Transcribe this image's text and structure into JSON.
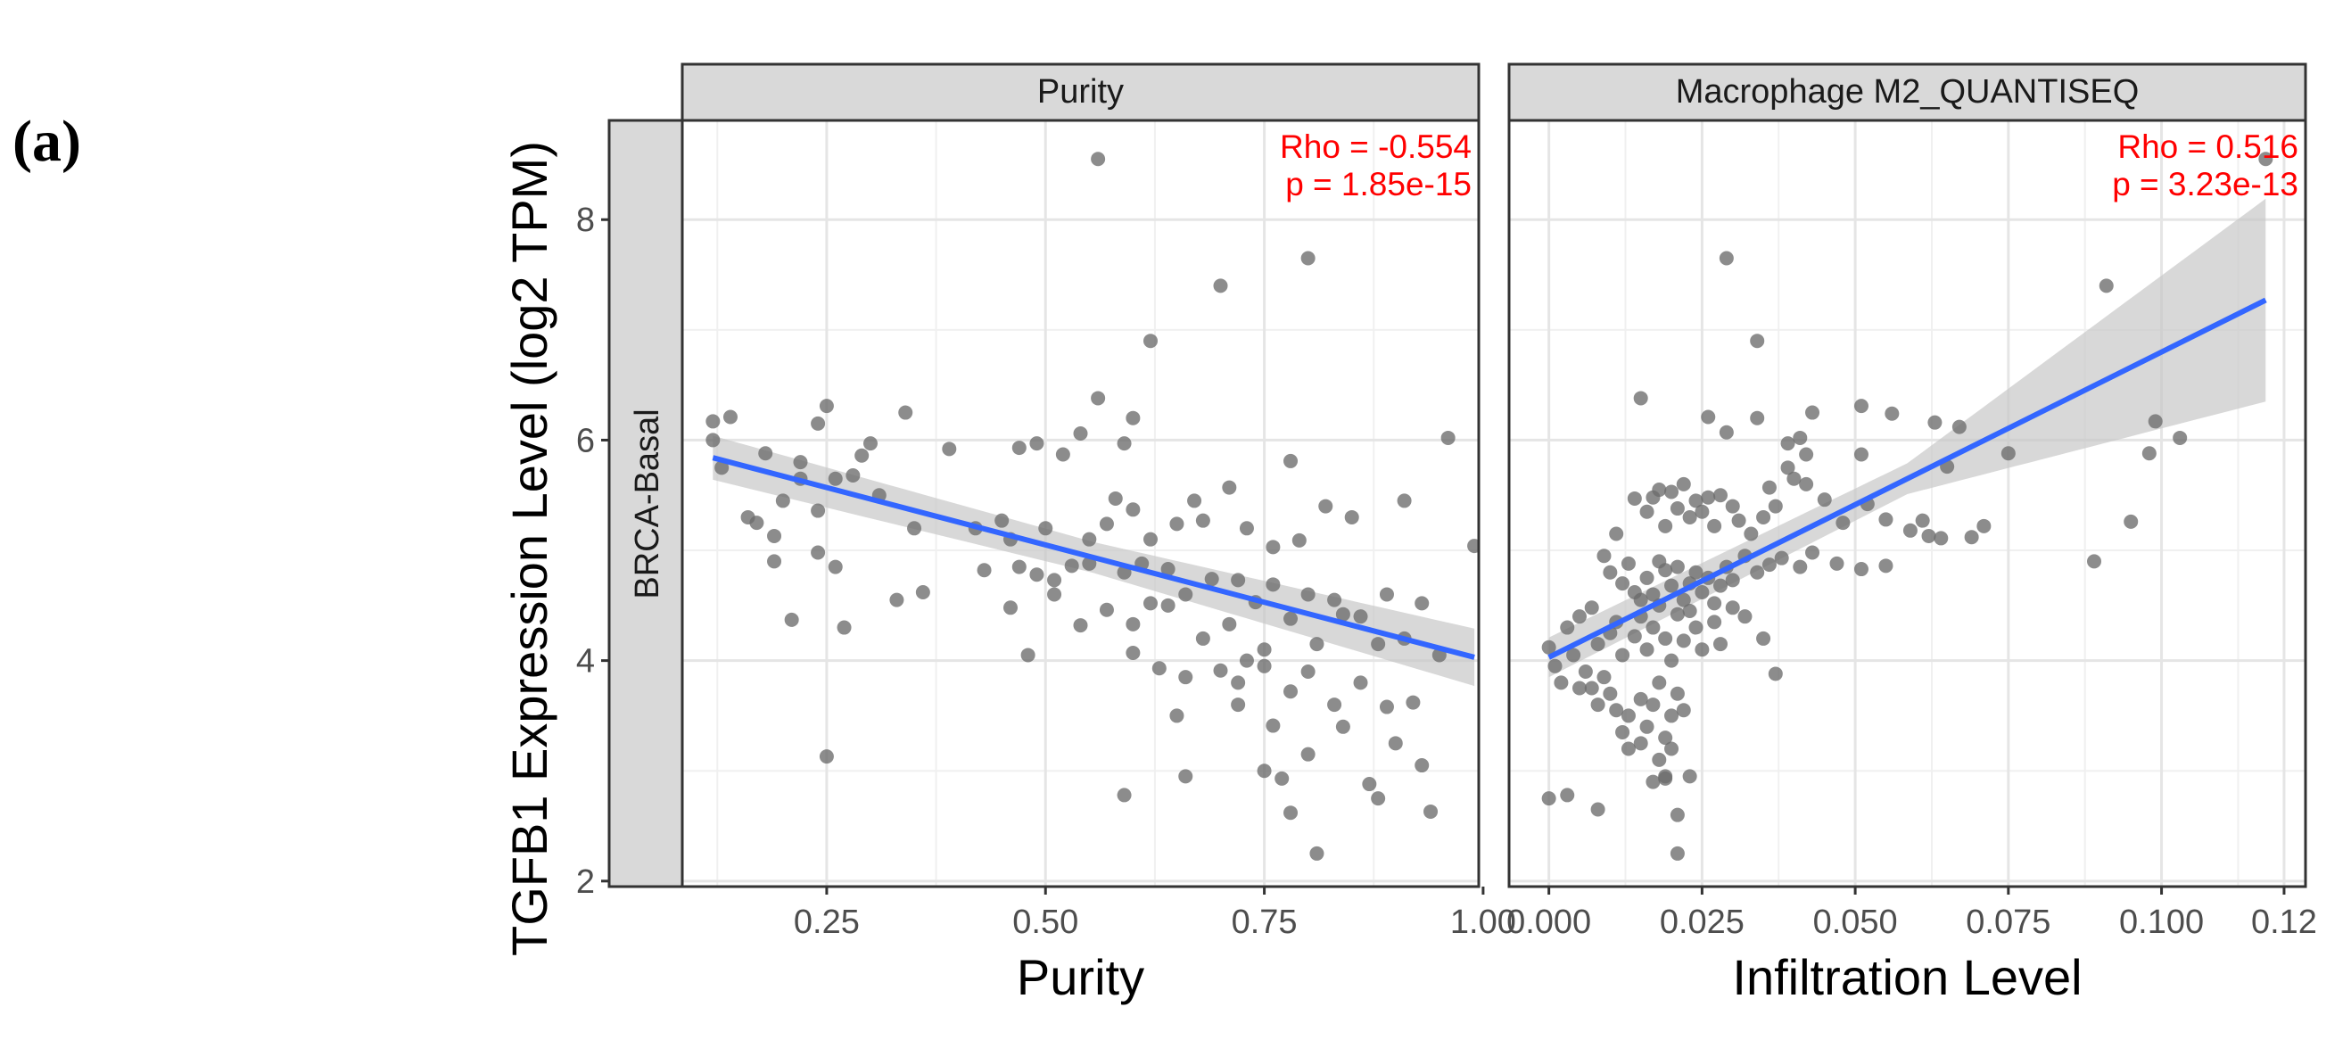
{
  "panel_label": "(a)",
  "colors": {
    "points": "#6b6b6b",
    "line": "#3366ff",
    "ribbon": "#c8c8c8",
    "annotation": "#ff0000",
    "strip_fill": "#d9d9d9",
    "grid": "#e5e5e5",
    "text": "#4d4d4d"
  },
  "chart_data": [
    {
      "type": "scatter",
      "title": "Purity",
      "row_strip": "BRCA-Basal",
      "xlabel": "Purity",
      "ylabel": "TGFB1 Expression Level (log2 TPM)",
      "xlim": [
        0.085,
        0.995
      ],
      "ylim": [
        1.95,
        8.9
      ],
      "xticks": [
        0.25,
        0.5,
        0.75,
        1.0
      ],
      "xtick_labels": [
        "0.25",
        "0.50",
        "0.75",
        "1.00"
      ],
      "yticks": [
        2,
        4,
        6,
        8
      ],
      "ytick_labels": [
        "2",
        "4",
        "6",
        "8"
      ],
      "grid": true,
      "annotation": [
        "Rho = -0.554",
        "p = 1.85e-15"
      ],
      "fit": {
        "x0": 0.12,
        "y0": 5.84,
        "x1": 0.99,
        "y1": 4.03,
        "band_low": 0.1,
        "band_mid": 0.07,
        "band_high": 0.13
      },
      "points": [
        [
          0.56,
          8.55
        ],
        [
          0.8,
          7.65
        ],
        [
          0.7,
          7.4
        ],
        [
          0.62,
          6.9
        ],
        [
          0.12,
          6.17
        ],
        [
          0.14,
          6.21
        ],
        [
          0.25,
          6.31
        ],
        [
          0.34,
          6.25
        ],
        [
          0.24,
          6.15
        ],
        [
          0.56,
          6.38
        ],
        [
          0.6,
          6.2
        ],
        [
          0.96,
          6.02
        ],
        [
          0.12,
          6.0
        ],
        [
          0.18,
          5.88
        ],
        [
          0.22,
          5.8
        ],
        [
          0.29,
          5.86
        ],
        [
          0.3,
          5.97
        ],
        [
          0.39,
          5.92
        ],
        [
          0.47,
          5.93
        ],
        [
          0.49,
          5.97
        ],
        [
          0.52,
          5.87
        ],
        [
          0.54,
          6.06
        ],
        [
          0.59,
          5.97
        ],
        [
          0.78,
          5.81
        ],
        [
          0.13,
          5.75
        ],
        [
          0.16,
          5.3
        ],
        [
          0.17,
          5.25
        ],
        [
          0.19,
          5.13
        ],
        [
          0.2,
          5.45
        ],
        [
          0.22,
          5.65
        ],
        [
          0.24,
          5.36
        ],
        [
          0.26,
          5.65
        ],
        [
          0.28,
          5.68
        ],
        [
          0.31,
          5.5
        ],
        [
          0.35,
          5.2
        ],
        [
          0.42,
          5.2
        ],
        [
          0.45,
          5.27
        ],
        [
          0.46,
          5.1
        ],
        [
          0.5,
          5.2
        ],
        [
          0.55,
          5.1
        ],
        [
          0.57,
          5.24
        ],
        [
          0.58,
          5.47
        ],
        [
          0.6,
          5.37
        ],
        [
          0.62,
          5.1
        ],
        [
          0.65,
          5.24
        ],
        [
          0.67,
          5.45
        ],
        [
          0.68,
          5.27
        ],
        [
          0.71,
          5.57
        ],
        [
          0.73,
          5.2
        ],
        [
          0.76,
          5.03
        ],
        [
          0.79,
          5.09
        ],
        [
          0.82,
          5.4
        ],
        [
          0.85,
          5.3
        ],
        [
          0.91,
          5.45
        ],
        [
          0.99,
          5.04
        ],
        [
          0.19,
          4.9
        ],
        [
          0.24,
          4.98
        ],
        [
          0.26,
          4.85
        ],
        [
          0.43,
          4.82
        ],
        [
          0.47,
          4.85
        ],
        [
          0.49,
          4.78
        ],
        [
          0.51,
          4.73
        ],
        [
          0.53,
          4.86
        ],
        [
          0.55,
          4.88
        ],
        [
          0.59,
          4.8
        ],
        [
          0.61,
          4.88
        ],
        [
          0.64,
          4.83
        ],
        [
          0.66,
          4.6
        ],
        [
          0.69,
          4.74
        ],
        [
          0.72,
          4.73
        ],
        [
          0.74,
          4.53
        ],
        [
          0.76,
          4.69
        ],
        [
          0.8,
          4.6
        ],
        [
          0.83,
          4.55
        ],
        [
          0.86,
          4.4
        ],
        [
          0.89,
          4.6
        ],
        [
          0.93,
          4.52
        ],
        [
          0.21,
          4.37
        ],
        [
          0.27,
          4.3
        ],
        [
          0.33,
          4.55
        ],
        [
          0.36,
          4.62
        ],
        [
          0.46,
          4.48
        ],
        [
          0.51,
          4.6
        ],
        [
          0.54,
          4.32
        ],
        [
          0.57,
          4.46
        ],
        [
          0.6,
          4.33
        ],
        [
          0.62,
          4.52
        ],
        [
          0.64,
          4.5
        ],
        [
          0.68,
          4.2
        ],
        [
          0.71,
          4.33
        ],
        [
          0.73,
          4.0
        ],
        [
          0.75,
          4.1
        ],
        [
          0.78,
          4.38
        ],
        [
          0.81,
          4.15
        ],
        [
          0.84,
          4.42
        ],
        [
          0.88,
          4.15
        ],
        [
          0.91,
          4.2
        ],
        [
          0.95,
          4.05
        ],
        [
          0.48,
          4.05
        ],
        [
          0.6,
          4.07
        ],
        [
          0.63,
          3.93
        ],
        [
          0.66,
          3.85
        ],
        [
          0.7,
          3.91
        ],
        [
          0.72,
          3.8
        ],
        [
          0.75,
          3.95
        ],
        [
          0.78,
          3.72
        ],
        [
          0.8,
          3.9
        ],
        [
          0.83,
          3.6
        ],
        [
          0.86,
          3.8
        ],
        [
          0.89,
          3.58
        ],
        [
          0.92,
          3.62
        ],
        [
          0.65,
          3.5
        ],
        [
          0.72,
          3.6
        ],
        [
          0.76,
          3.41
        ],
        [
          0.84,
          3.4
        ],
        [
          0.9,
          3.25
        ],
        [
          0.93,
          3.05
        ],
        [
          0.25,
          3.13
        ],
        [
          0.75,
          3.0
        ],
        [
          0.8,
          3.15
        ],
        [
          0.66,
          2.95
        ],
        [
          0.77,
          2.93
        ],
        [
          0.87,
          2.88
        ],
        [
          0.59,
          2.78
        ],
        [
          0.88,
          2.75
        ],
        [
          0.78,
          2.62
        ],
        [
          0.94,
          2.63
        ],
        [
          0.81,
          2.25
        ]
      ]
    },
    {
      "type": "scatter",
      "title": "Macrophage M2_QUANTISEQ",
      "xlabel": "Infiltration Level",
      "xlim": [
        -0.0065,
        0.1235
      ],
      "ylim": [
        1.95,
        8.9
      ],
      "xticks": [
        0.0,
        0.025,
        0.05,
        0.075,
        0.1,
        0.12
      ],
      "xtick_labels": [
        "0.000",
        "0.025",
        "0.050",
        "0.075",
        "0.100",
        "0.12"
      ],
      "grid": true,
      "annotation": [
        "Rho = 0.516",
        "p = 3.23e-13"
      ],
      "fit": {
        "x0": 0.0,
        "y0": 4.03,
        "x1": 0.117,
        "y1": 7.27,
        "band_low": 0.09,
        "band_mid": 0.07,
        "band_high": 0.46
      },
      "points": [
        [
          0.117,
          8.55
        ],
        [
          0.029,
          7.65
        ],
        [
          0.091,
          7.4
        ],
        [
          0.034,
          6.9
        ],
        [
          0.015,
          6.38
        ],
        [
          0.026,
          6.21
        ],
        [
          0.034,
          6.2
        ],
        [
          0.043,
          6.25
        ],
        [
          0.051,
          6.31
        ],
        [
          0.056,
          6.24
        ],
        [
          0.063,
          6.16
        ],
        [
          0.067,
          6.12
        ],
        [
          0.099,
          6.17
        ],
        [
          0.103,
          6.02
        ],
        [
          0.029,
          6.07
        ],
        [
          0.039,
          5.97
        ],
        [
          0.041,
          6.02
        ],
        [
          0.042,
          5.87
        ],
        [
          0.051,
          5.87
        ],
        [
          0.065,
          5.76
        ],
        [
          0.075,
          5.88
        ],
        [
          0.098,
          5.88
        ],
        [
          0.011,
          5.15
        ],
        [
          0.014,
          5.47
        ],
        [
          0.016,
          5.35
        ],
        [
          0.017,
          5.48
        ],
        [
          0.018,
          5.55
        ],
        [
          0.019,
          5.22
        ],
        [
          0.02,
          5.53
        ],
        [
          0.021,
          5.38
        ],
        [
          0.022,
          5.6
        ],
        [
          0.023,
          5.3
        ],
        [
          0.024,
          5.45
        ],
        [
          0.025,
          5.35
        ],
        [
          0.026,
          5.48
        ],
        [
          0.027,
          5.22
        ],
        [
          0.028,
          5.5
        ],
        [
          0.03,
          5.4
        ],
        [
          0.031,
          5.27
        ],
        [
          0.033,
          5.15
        ],
        [
          0.035,
          5.3
        ],
        [
          0.036,
          5.57
        ],
        [
          0.037,
          5.4
        ],
        [
          0.039,
          5.75
        ],
        [
          0.04,
          5.65
        ],
        [
          0.042,
          5.6
        ],
        [
          0.045,
          5.46
        ],
        [
          0.048,
          5.25
        ],
        [
          0.052,
          5.42
        ],
        [
          0.055,
          5.28
        ],
        [
          0.059,
          5.18
        ],
        [
          0.061,
          5.27
        ],
        [
          0.062,
          5.13
        ],
        [
          0.064,
          5.11
        ],
        [
          0.069,
          5.12
        ],
        [
          0.071,
          5.22
        ],
        [
          0.095,
          5.26
        ],
        [
          0.009,
          4.95
        ],
        [
          0.01,
          4.8
        ],
        [
          0.012,
          4.7
        ],
        [
          0.013,
          4.88
        ],
        [
          0.014,
          4.62
        ],
        [
          0.015,
          4.55
        ],
        [
          0.016,
          4.75
        ],
        [
          0.017,
          4.6
        ],
        [
          0.018,
          4.9
        ],
        [
          0.019,
          4.82
        ],
        [
          0.02,
          4.68
        ],
        [
          0.021,
          4.85
        ],
        [
          0.022,
          4.55
        ],
        [
          0.023,
          4.7
        ],
        [
          0.024,
          4.8
        ],
        [
          0.025,
          4.62
        ],
        [
          0.026,
          4.75
        ],
        [
          0.027,
          4.52
        ],
        [
          0.028,
          4.68
        ],
        [
          0.029,
          4.85
        ],
        [
          0.03,
          4.73
        ],
        [
          0.032,
          4.95
        ],
        [
          0.034,
          4.8
        ],
        [
          0.036,
          4.87
        ],
        [
          0.038,
          4.93
        ],
        [
          0.041,
          4.85
        ],
        [
          0.043,
          4.98
        ],
        [
          0.047,
          4.88
        ],
        [
          0.051,
          4.83
        ],
        [
          0.055,
          4.86
        ],
        [
          0.089,
          4.9
        ],
        [
          0.003,
          4.3
        ],
        [
          0.005,
          4.4
        ],
        [
          0.007,
          4.48
        ],
        [
          0.008,
          4.15
        ],
        [
          0.01,
          4.25
        ],
        [
          0.011,
          4.35
        ],
        [
          0.012,
          4.05
        ],
        [
          0.014,
          4.22
        ],
        [
          0.015,
          4.4
        ],
        [
          0.016,
          4.1
        ],
        [
          0.017,
          4.3
        ],
        [
          0.018,
          4.5
        ],
        [
          0.019,
          4.2
        ],
        [
          0.02,
          4.0
        ],
        [
          0.021,
          4.42
        ],
        [
          0.022,
          4.18
        ],
        [
          0.023,
          4.45
        ],
        [
          0.024,
          4.3
        ],
        [
          0.025,
          4.1
        ],
        [
          0.027,
          4.35
        ],
        [
          0.028,
          4.15
        ],
        [
          0.03,
          4.48
        ],
        [
          0.032,
          4.4
        ],
        [
          0.035,
          4.2
        ],
        [
          0.037,
          3.88
        ],
        [
          0.0,
          4.12
        ],
        [
          0.001,
          3.95
        ],
        [
          0.002,
          3.8
        ],
        [
          0.004,
          4.05
        ],
        [
          0.006,
          3.9
        ],
        [
          0.007,
          3.75
        ],
        [
          0.008,
          3.6
        ],
        [
          0.009,
          3.85
        ],
        [
          0.01,
          3.7
        ],
        [
          0.011,
          3.55
        ],
        [
          0.013,
          3.5
        ],
        [
          0.015,
          3.65
        ],
        [
          0.016,
          3.4
        ],
        [
          0.017,
          3.6
        ],
        [
          0.018,
          3.8
        ],
        [
          0.019,
          3.3
        ],
        [
          0.02,
          3.5
        ],
        [
          0.021,
          3.7
        ],
        [
          0.012,
          3.35
        ],
        [
          0.015,
          3.25
        ],
        [
          0.018,
          3.1
        ],
        [
          0.019,
          2.95
        ],
        [
          0.02,
          3.2
        ],
        [
          0.017,
          2.9
        ],
        [
          0.021,
          2.6
        ],
        [
          0.023,
          2.95
        ],
        [
          0.0,
          2.75
        ],
        [
          0.003,
          2.78
        ],
        [
          0.008,
          2.65
        ],
        [
          0.021,
          2.25
        ],
        [
          0.019,
          2.93
        ],
        [
          0.005,
          3.75
        ],
        [
          0.013,
          3.2
        ],
        [
          0.022,
          3.55
        ]
      ]
    }
  ]
}
